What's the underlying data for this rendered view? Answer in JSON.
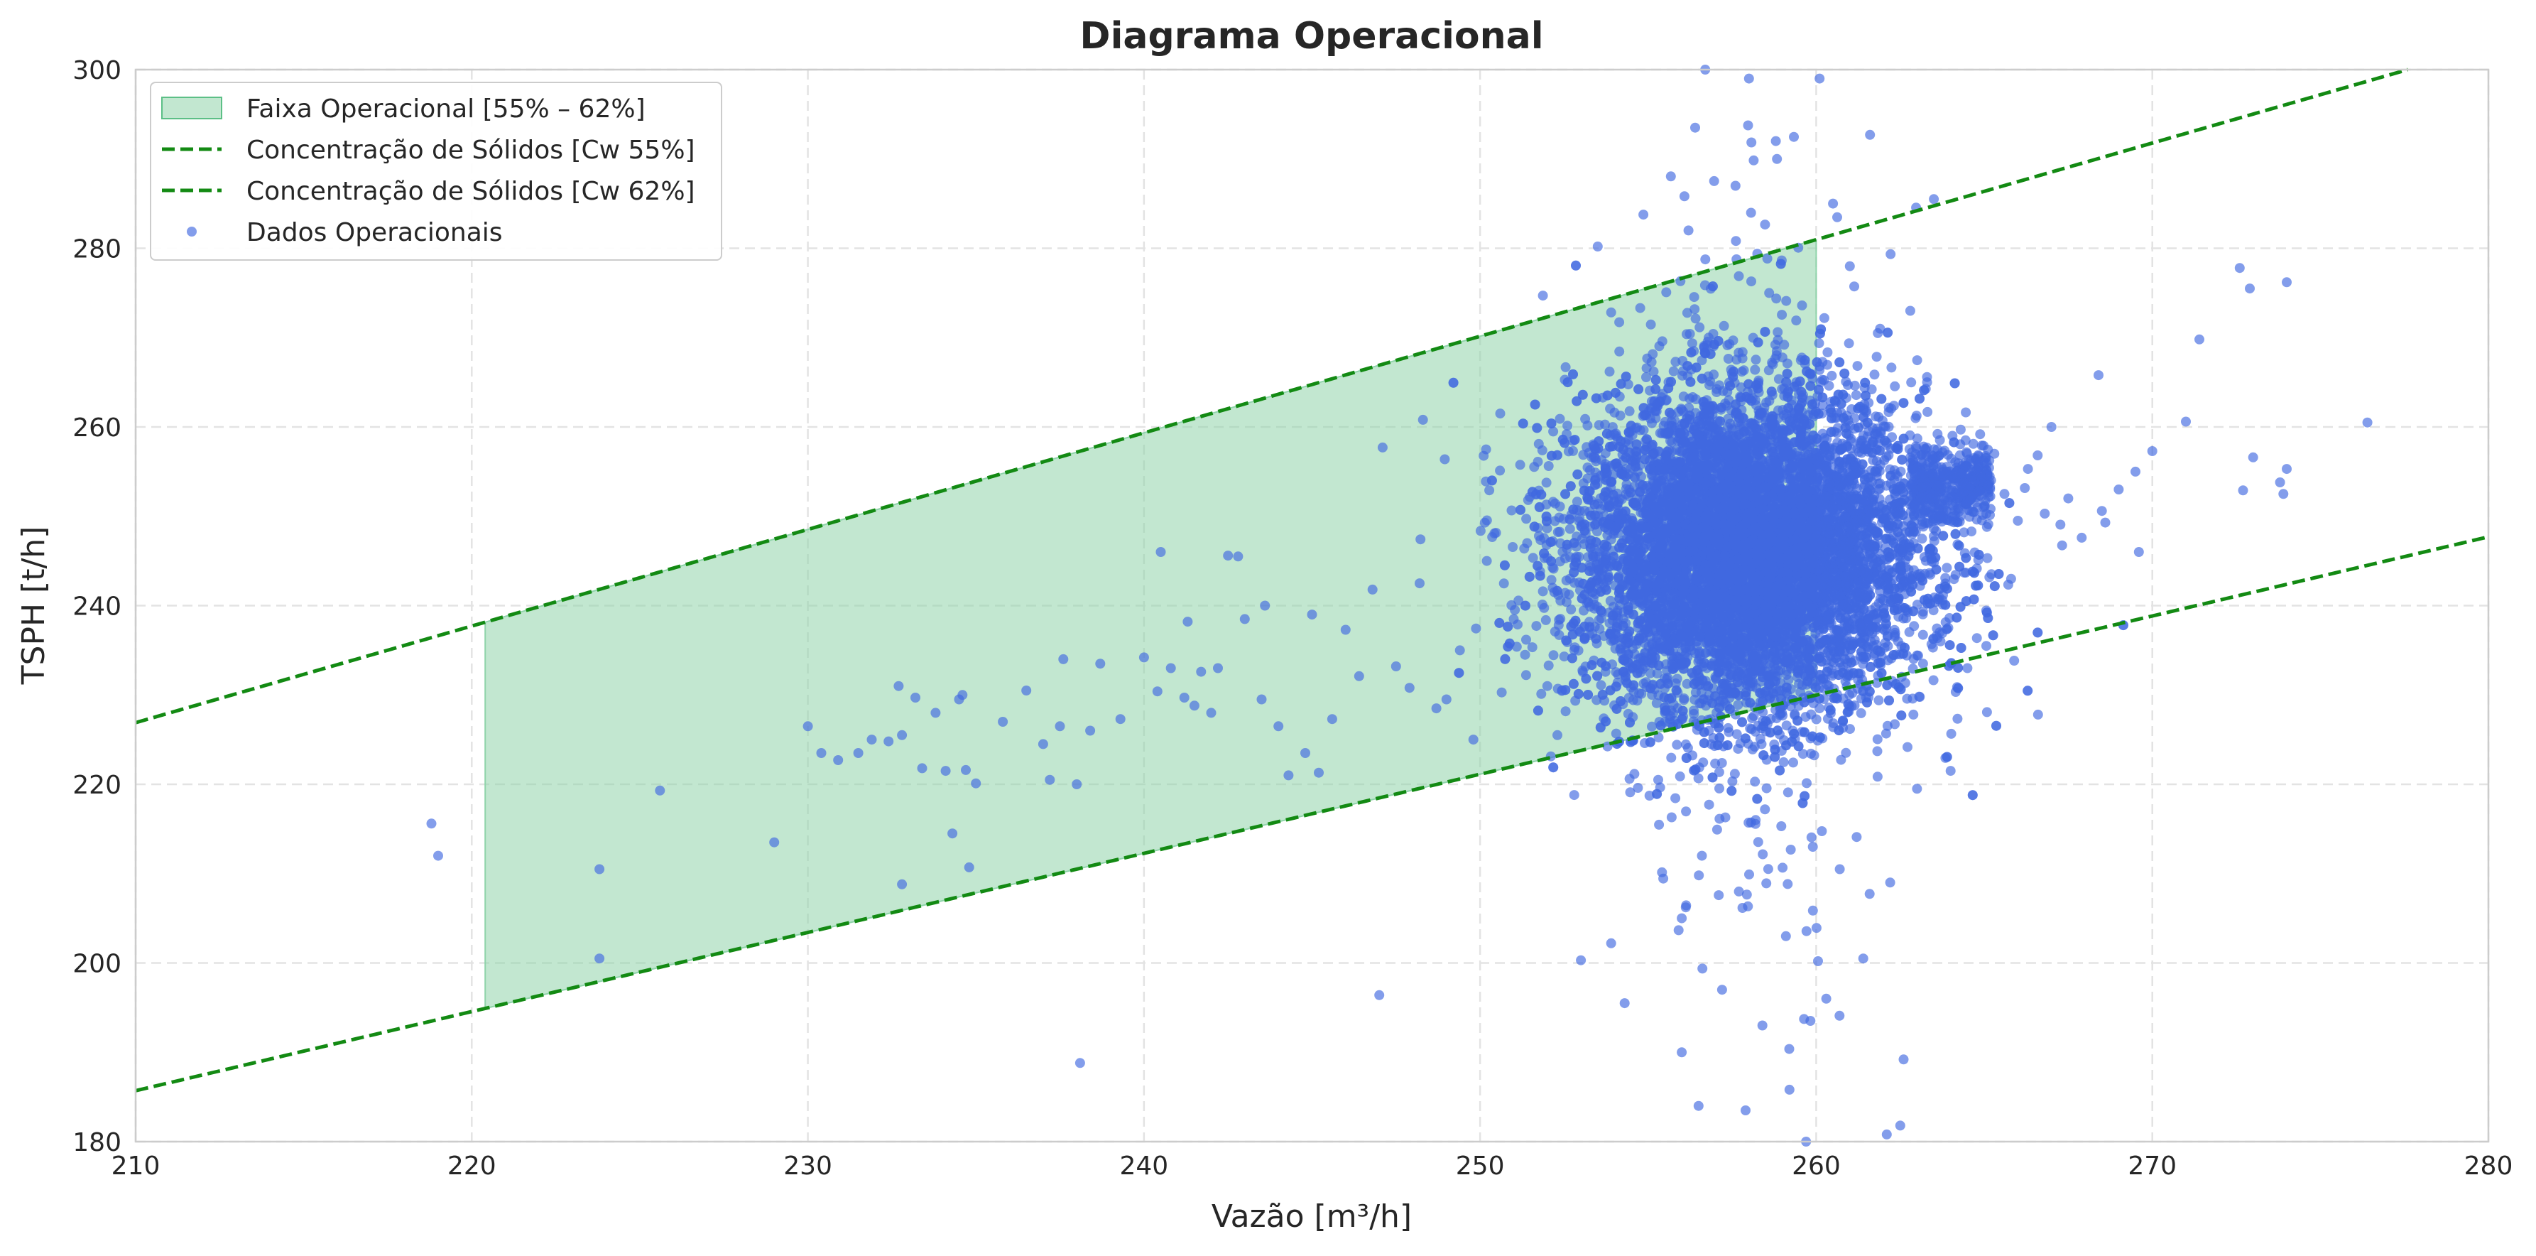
{
  "chart_data": {
    "type": "scatter",
    "title": "Diagrama Operacional",
    "xlabel": "Vazão [m³/h]",
    "ylabel": "TSPH [t/h]",
    "xlim": [
      210,
      280
    ],
    "ylim": [
      180,
      300
    ],
    "xticks": [
      "210",
      "220",
      "230",
      "240",
      "250",
      "260",
      "270",
      "280"
    ],
    "yticks": [
      "180",
      "200",
      "220",
      "240",
      "260",
      "280",
      "300"
    ],
    "grid": true,
    "legend_position": "top-left",
    "legend": [
      {
        "label": "Faixa Operacional [55% – 62%]",
        "kind": "band"
      },
      {
        "label": "Concentração de Sólidos [Cw 55%]",
        "kind": "dashed-line"
      },
      {
        "label": "Concentração de Sólidos [Cw 62%]",
        "kind": "dashed-line"
      },
      {
        "label": "Dados Operacionais",
        "kind": "marker"
      }
    ],
    "colors": {
      "band": "#8fd4aa",
      "lines": "#138a13",
      "points": "#4169e1",
      "grid": "#e3e3e3"
    },
    "band": {
      "x_start": 220.4,
      "x_end": 260,
      "lower_series": "Concentração de Sólidos [Cw 55%]",
      "upper_series": "Concentração de Sólidos [Cw 62%]"
    },
    "series": [
      {
        "name": "Concentração de Sólidos [Cw 55%]",
        "type": "line",
        "style": "dashed",
        "x": [
          210,
          280
        ],
        "y": [
          185.7,
          247.7
        ]
      },
      {
        "name": "Concentração de Sólidos [Cw 62%]",
        "type": "line",
        "style": "dashed",
        "x": [
          210,
          277.6
        ],
        "y": [
          226.9,
          300
        ]
      },
      {
        "name": "Dados Operacionais",
        "type": "scatter",
        "cluster": {
          "x_center": 258,
          "y_center": 246,
          "x_spread": 2.6,
          "y_spread": 9,
          "approx_points": 9000
        },
        "points": [
          [
            218.8,
            215.6
          ],
          [
            219,
            212
          ],
          [
            223.8,
            210.5
          ],
          [
            223.8,
            200.5
          ],
          [
            225.6,
            219.3
          ],
          [
            229,
            213.5
          ],
          [
            230,
            226.5
          ],
          [
            230.4,
            223.5
          ],
          [
            230.9,
            222.7
          ],
          [
            231.5,
            223.5
          ],
          [
            231.9,
            225
          ],
          [
            232.4,
            224.8
          ],
          [
            232.7,
            231
          ],
          [
            232.8,
            225.5
          ],
          [
            232.8,
            208.8
          ],
          [
            233.2,
            229.7
          ],
          [
            233.4,
            221.8
          ],
          [
            233.8,
            228
          ],
          [
            234.1,
            221.5
          ],
          [
            234.3,
            214.5
          ],
          [
            234.5,
            229.5
          ],
          [
            234.6,
            230
          ],
          [
            234.7,
            221.6
          ],
          [
            234.8,
            210.7
          ],
          [
            235,
            220.1
          ],
          [
            235.8,
            227
          ],
          [
            236.5,
            230.5
          ],
          [
            237,
            224.5
          ],
          [
            237.2,
            220.5
          ],
          [
            237.5,
            226.5
          ],
          [
            237.6,
            234
          ],
          [
            238,
            220
          ],
          [
            238.1,
            188.8
          ],
          [
            238.4,
            226
          ],
          [
            238.7,
            233.5
          ],
          [
            239.3,
            227.3
          ],
          [
            240,
            234.2
          ],
          [
            240.4,
            230.4
          ],
          [
            240.5,
            246
          ],
          [
            240.8,
            233
          ],
          [
            241.2,
            229.7
          ],
          [
            241.3,
            238.2
          ],
          [
            241.5,
            228.8
          ],
          [
            241.7,
            232.6
          ],
          [
            242,
            228
          ],
          [
            242.2,
            233
          ],
          [
            242.5,
            245.6
          ],
          [
            242.8,
            245.5
          ],
          [
            243,
            238.5
          ],
          [
            243.5,
            229.5
          ],
          [
            243.6,
            240
          ],
          [
            244,
            226.5
          ],
          [
            244.3,
            221
          ],
          [
            244.8,
            223.5
          ],
          [
            245,
            239
          ],
          [
            245.2,
            221.3
          ],
          [
            245.6,
            227.3
          ],
          [
            246,
            237.3
          ],
          [
            246.4,
            232.1
          ],
          [
            246.8,
            241.8
          ],
          [
            247,
            196.4
          ],
          [
            247.1,
            257.7
          ],
          [
            247.5,
            233.2
          ],
          [
            247.9,
            230.8
          ],
          [
            248.2,
            242.5
          ],
          [
            248.3,
            260.8
          ],
          [
            248.7,
            228.5
          ],
          [
            249,
            229.5
          ],
          [
            249.4,
            235
          ],
          [
            249.8,
            225
          ],
          [
            250.2,
            245
          ],
          [
            250.6,
            261.5
          ],
          [
            251,
            238.5
          ],
          [
            251.4,
            247
          ],
          [
            252,
            231
          ],
          [
            252.3,
            225.5
          ],
          [
            252.8,
            218.8
          ],
          [
            253,
            200.3
          ],
          [
            253.5,
            280.2
          ],
          [
            253.9,
            202.2
          ],
          [
            254.3,
            195.5
          ],
          [
            255.3,
            220.5
          ],
          [
            255.5,
            228
          ],
          [
            255.7,
            216.3
          ],
          [
            256,
            205
          ],
          [
            256,
            190
          ],
          [
            256.2,
            282
          ],
          [
            256.4,
            293.5
          ],
          [
            256.5,
            184
          ],
          [
            256.6,
            212
          ],
          [
            256.7,
            300
          ],
          [
            256.8,
            270
          ],
          [
            257,
            178.5
          ],
          [
            257.2,
            197
          ],
          [
            257.4,
            263
          ],
          [
            257.6,
            287
          ],
          [
            257.7,
            208
          ],
          [
            257.9,
            183.5
          ],
          [
            258,
            299
          ],
          [
            258.2,
            216
          ],
          [
            258.4,
            193
          ],
          [
            258.6,
            275
          ],
          [
            258.8,
            292
          ],
          [
            259,
            177.5
          ],
          [
            259.1,
            203
          ],
          [
            259.3,
            226
          ],
          [
            259.5,
            261
          ],
          [
            259.7,
            180
          ],
          [
            259.9,
            213
          ],
          [
            260,
            244
          ],
          [
            260.1,
            299
          ],
          [
            260.3,
            196
          ],
          [
            260.5,
            285
          ],
          [
            260.7,
            210.5
          ],
          [
            261,
            278
          ],
          [
            261.2,
            256
          ],
          [
            261.4,
            200.5
          ],
          [
            261.6,
            292.7
          ],
          [
            261.9,
            271
          ],
          [
            262.1,
            180.8
          ],
          [
            262.2,
            209
          ],
          [
            262.5,
            181.8
          ],
          [
            262.6,
            189.2
          ],
          [
            262.8,
            273
          ],
          [
            263,
            219.5
          ],
          [
            263.3,
            265
          ],
          [
            263.5,
            285.5
          ],
          [
            263.7,
            236
          ],
          [
            264,
            221.5
          ],
          [
            264.3,
            259.7
          ],
          [
            264.5,
            233
          ],
          [
            264.8,
            251
          ],
          [
            265,
            255
          ],
          [
            265.3,
            257
          ],
          [
            265.6,
            252.5
          ],
          [
            265.8,
            243
          ],
          [
            266,
            249.5
          ],
          [
            266.3,
            255.3
          ],
          [
            266.6,
            227.8
          ],
          [
            266.8,
            250.3
          ],
          [
            267,
            260
          ],
          [
            267.5,
            252
          ],
          [
            267.9,
            247.6
          ],
          [
            268.4,
            265.8
          ],
          [
            268.5,
            250.6
          ],
          [
            268.6,
            249.3
          ],
          [
            269,
            253
          ],
          [
            269.5,
            255
          ],
          [
            269.6,
            246
          ],
          [
            270,
            257.3
          ],
          [
            271,
            260.6
          ],
          [
            271.4,
            269.8
          ],
          [
            272.6,
            277.8
          ],
          [
            272.7,
            252.9
          ],
          [
            272.9,
            275.5
          ],
          [
            273,
            256.6
          ],
          [
            273.8,
            253.8
          ],
          [
            273.9,
            252.5
          ],
          [
            274,
            255.3
          ],
          [
            274,
            276.2
          ],
          [
            276.4,
            260.5
          ]
        ]
      }
    ]
  }
}
